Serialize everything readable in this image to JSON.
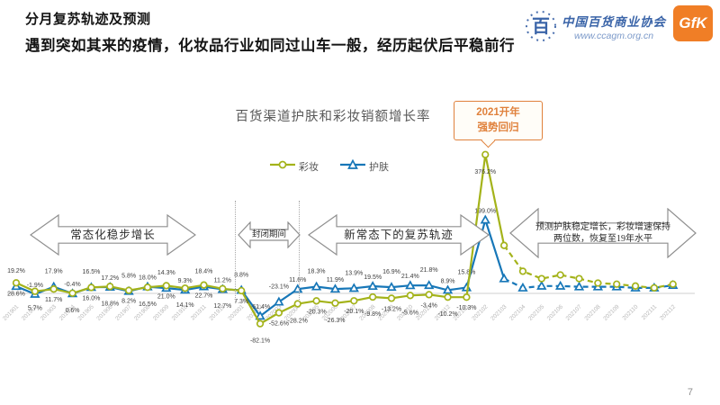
{
  "slide": {
    "title": "分月复苏轨迹及预测",
    "subtitle": "遇到突如其来的疫情，化妆品行业如同过山车一般，经历起伏后平稳前行",
    "page_number": "7"
  },
  "logos": {
    "association_name": "中国百货商业协会",
    "association_url": "www.ccagm.org.cn",
    "association_color": "#3a64a8",
    "gfk_label": "GfK",
    "gfk_color": "#f07e26"
  },
  "chart": {
    "title": "百货渠道护肤和彩妆销额增长率",
    "legend": [
      {
        "label": "彩妆",
        "marker": "circle",
        "color": "#a4b31a"
      },
      {
        "label": "护肤",
        "marker": "triangle",
        "color": "#1777b8"
      }
    ]
  },
  "annotations": {
    "callout": {
      "line1": "2021开年",
      "line2": "强势回归",
      "color": "#e0813c"
    },
    "arrow_steady": "常态化稳步增长",
    "arrow_lockdown": "封闭期间",
    "arrow_recovery": "新常态下的复苏轨迹",
    "arrow_forecast_line1": "预测护肤稳定增长，彩妆增速保持",
    "arrow_forecast_line2": "两位数，恢复至19年水平"
  },
  "chart_data": {
    "type": "line",
    "title": "百货渠道护肤和彩妆销额增长率",
    "x": [
      "201901",
      "201902",
      "201903",
      "201904",
      "201905",
      "201906",
      "201907",
      "201908",
      "201909",
      "201910",
      "201911",
      "201912",
      "202001",
      "202002",
      "202003",
      "202004",
      "202005",
      "202006",
      "202007",
      "202008",
      "202009",
      "202010",
      "202011",
      "202012",
      "202101",
      "202102",
      "202103",
      "202104",
      "202105",
      "202106",
      "202107",
      "202108",
      "202109",
      "202110",
      "202111",
      "202112"
    ],
    "forecast_start_index": 26,
    "forecast_note": "values after 202103 are dashed forecast, unlabeled in source, estimated from pixels",
    "ylim": [
      -120,
      420
    ],
    "zero_axis": true,
    "series": [
      {
        "name": "彩妆",
        "color": "#a4b31a",
        "marker": "circle",
        "label_side": "below",
        "values": [
          28.6,
          5.7,
          11.7,
          0.6,
          16.0,
          18.8,
          8.2,
          16.5,
          21.0,
          14.1,
          22.7,
          12.7,
          7.3,
          -82.1,
          -52.6,
          -28.2,
          -20.3,
          -26.3,
          -20.1,
          -9.8,
          -13.2,
          -5.6,
          -3.4,
          -10.2,
          -10.3,
          376.2,
          130,
          60,
          40,
          50,
          40,
          28,
          25,
          20,
          15,
          25
        ],
        "labels": [
          "28.6%",
          "5.7%",
          "11.7%",
          "0.6%",
          "16.0%",
          "18.8%",
          "8.2%",
          "16.5%",
          "21.0%",
          "14.1%",
          "22.7%",
          "12.7%",
          "7.3%",
          "-82.1%",
          "-52.6%",
          "-28.2%",
          "-20.3%",
          "-26.3%",
          "-20.1%",
          "-9.8%",
          "-13.2%",
          "-5.6%",
          "-3.4%",
          "-10.2%",
          "-10.3%",
          "376.2%",
          null,
          null,
          null,
          null,
          null,
          null,
          null,
          null,
          null,
          null
        ]
      },
      {
        "name": "护肤",
        "color": "#1777b8",
        "marker": "triangle",
        "label_side": "above",
        "values": [
          19.2,
          -1.9,
          17.9,
          -0.4,
          16.5,
          17.2,
          5.8,
          18.0,
          14.3,
          9.3,
          18.4,
          11.2,
          8.8,
          -61.4,
          -23.1,
          11.6,
          18.3,
          11.9,
          13.9,
          19.5,
          16.9,
          21.4,
          21.8,
          8.9,
          15.8,
          199.0,
          40,
          15,
          20,
          20,
          18,
          18,
          18,
          15,
          15,
          22
        ],
        "labels": [
          "19.2%",
          "-1.9%",
          "17.9%",
          "-0.4%",
          "16.5%",
          "17.2%",
          "5.8%",
          "18.0%",
          "14.3%",
          "9.3%",
          "18.4%",
          "11.2%",
          "8.8%",
          "-61.4%",
          "-23.1%",
          "11.6%",
          "18.3%",
          "11.9%",
          "13.9%",
          "19.5%",
          "16.9%",
          "21.4%",
          "21.8%",
          "8.9%",
          "15.8%",
          "199.0%",
          null,
          null,
          null,
          null,
          null,
          null,
          null,
          null,
          null,
          null
        ]
      }
    ]
  }
}
